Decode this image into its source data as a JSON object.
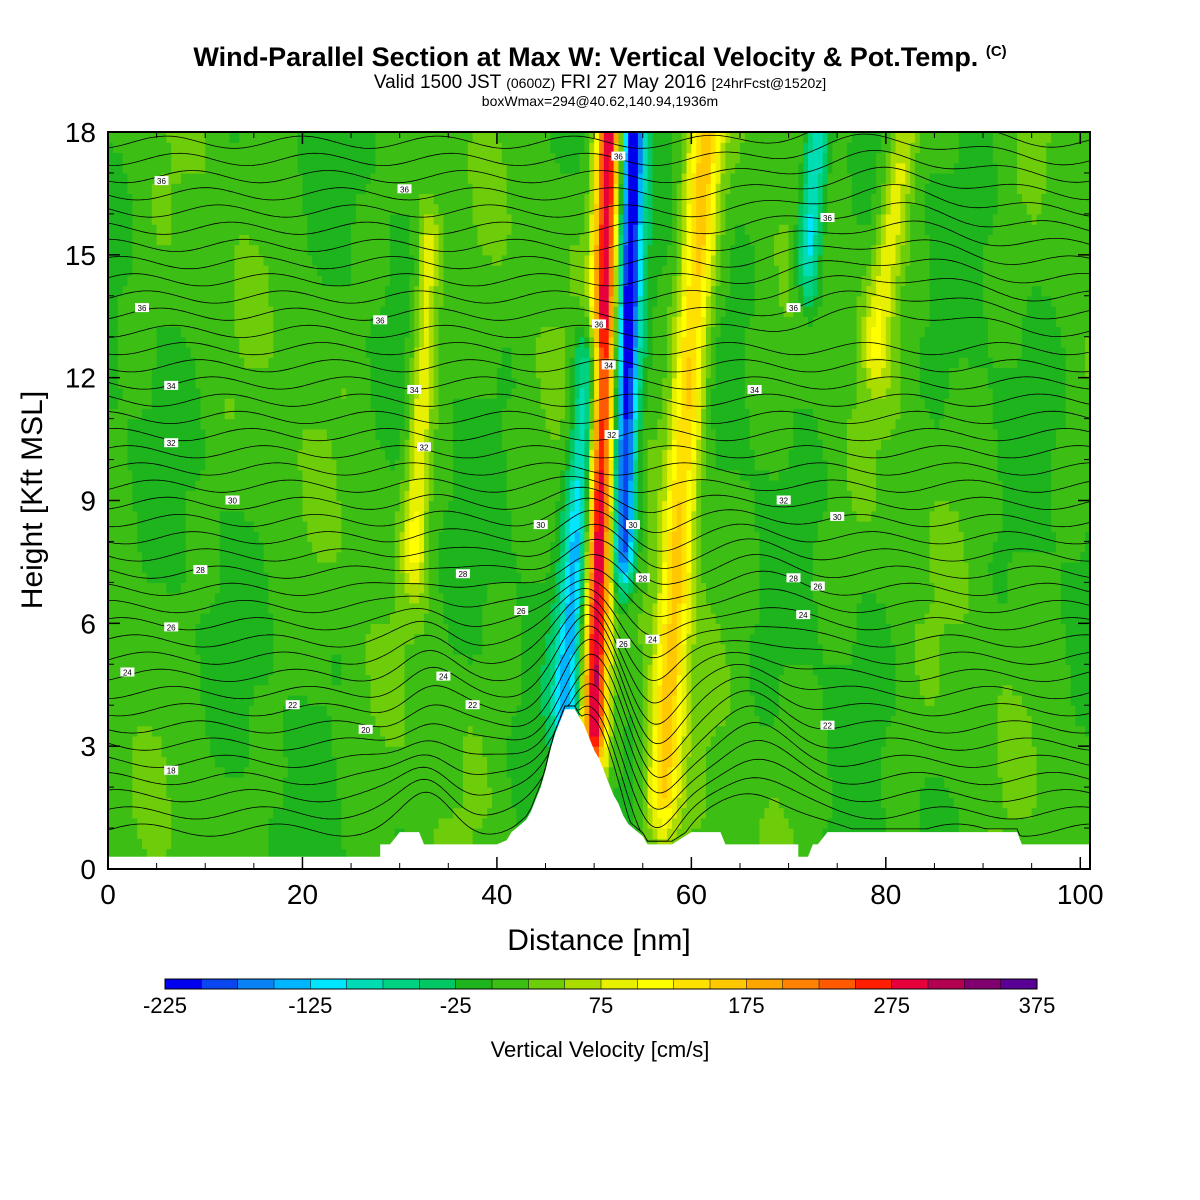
{
  "title": {
    "main": "Wind-Parallel Section at Max W: Vertical Velocity & Pot.Temp.",
    "copyright": "(C)",
    "valid": "Valid 1500 JST",
    "utc": "(0600Z)",
    "date": "FRI 27 May 2016",
    "forecast": "[24hrFcst@1520z]",
    "box_info": "boxWmax=294@40.62,140.94,1936m"
  },
  "colorbar": {
    "label": "Vertical Velocity [cm/s]",
    "tick_labels": [
      "-225",
      "-125",
      "-25",
      "75",
      "175",
      "275",
      "375"
    ],
    "levels": [
      -225,
      -200,
      -175,
      -150,
      -125,
      -100,
      -75,
      -50,
      -25,
      0,
      25,
      50,
      75,
      100,
      125,
      150,
      175,
      200,
      225,
      250,
      275,
      300,
      325,
      350,
      375
    ],
    "colors": [
      "#0000ee",
      "#0a46f0",
      "#0a82f5",
      "#00b4ff",
      "#00e6ff",
      "#00dcb4",
      "#00d282",
      "#00c864",
      "#1eb41e",
      "#3cbe14",
      "#6ecd0a",
      "#aadc00",
      "#e6f000",
      "#ffff00",
      "#ffe100",
      "#ffc800",
      "#ffa500",
      "#ff8200",
      "#ff5a00",
      "#ff1e00",
      "#e6003c",
      "#b40050",
      "#82006e",
      "#5a0096"
    ]
  },
  "chart_data": {
    "type": "heatmap",
    "xlabel": "Distance [nm]",
    "ylabel": "Height [Kft MSL]",
    "xlim": [
      0,
      101
    ],
    "ylim": [
      0,
      18
    ],
    "xticks": [
      "0",
      "20",
      "40",
      "60",
      "80",
      "100"
    ],
    "yticks": [
      "0",
      "3",
      "6",
      "9",
      "12",
      "15",
      "18"
    ],
    "z_units": "cm/s",
    "z_max": 294,
    "terrain": {
      "x": [
        0,
        28,
        28,
        29,
        30,
        31.5,
        32,
        32.5,
        40,
        40,
        41,
        41.5,
        42,
        42.5,
        43,
        43.5,
        44,
        44.5,
        45,
        45.5,
        46,
        46.5,
        47,
        47.5,
        48,
        48.5,
        49,
        49.5,
        50,
        50.5,
        51,
        51.5,
        52,
        52.5,
        53,
        53.5,
        54,
        54.5,
        55,
        55.5,
        56,
        56.5,
        57,
        58,
        60,
        63,
        63.5,
        64,
        71,
        71,
        72,
        72.5,
        73,
        74,
        74,
        77,
        80,
        85,
        90,
        93.5,
        94,
        101
      ],
      "h": [
        0.3,
        0.3,
        0.6,
        0.6,
        0.9,
        0.9,
        0.9,
        0.6,
        0.6,
        0.6,
        0.7,
        0.9,
        1.0,
        1.1,
        1.2,
        1.4,
        1.7,
        2.0,
        2.4,
        2.9,
        3.3,
        3.6,
        3.9,
        3.9,
        3.9,
        3.7,
        3.5,
        3.2,
        2.9,
        2.7,
        2.4,
        2.1,
        1.8,
        1.6,
        1.3,
        1.1,
        1.0,
        0.9,
        0.8,
        0.6,
        0.6,
        0.6,
        0.6,
        0.6,
        0.9,
        0.9,
        0.6,
        0.6,
        0.6,
        0.3,
        0.3,
        0.6,
        0.6,
        0.9,
        0.9,
        0.9,
        0.9,
        0.9,
        0.9,
        0.9,
        0.6,
        0.6
      ],
      "units": "Kft MSL"
    },
    "w_features": [
      {
        "type": "updraft",
        "x_top": 51.5,
        "x_base": 50.0,
        "y_from": 3.5,
        "y_to": 18,
        "peak": 290
      },
      {
        "type": "downdraft",
        "x_top": 54.0,
        "x_base": 53.0,
        "y_from": 8,
        "y_to": 18,
        "peak": -225
      },
      {
        "type": "downdraft",
        "x_top": 49.5,
        "x_base": 47.0,
        "y_from": 4,
        "y_to": 12,
        "peak": -140
      },
      {
        "type": "updraft",
        "x_top": 61.5,
        "x_base": 57.0,
        "y_from": 2,
        "y_to": 18,
        "peak": 150
      },
      {
        "type": "downdraft",
        "x_top": 73.0,
        "x_base": 72.0,
        "y_from": 15,
        "y_to": 18,
        "peak": -130
      },
      {
        "type": "updraft",
        "x_top": 33.0,
        "x_base": 31.5,
        "y_from": 8,
        "y_to": 15,
        "peak": 90
      },
      {
        "type": "updraft",
        "x_top": 82.0,
        "x_base": 79.0,
        "y_from": 13,
        "y_to": 18,
        "peak": 80
      }
    ],
    "theta_labels": [
      {
        "text": "36",
        "x": 5.5,
        "y": 16.8
      },
      {
        "text": "36",
        "x": 30.5,
        "y": 16.6
      },
      {
        "text": "36",
        "x": 52.5,
        "y": 17.4
      },
      {
        "text": "36",
        "x": 74.0,
        "y": 15.9
      },
      {
        "text": "36",
        "x": 3.5,
        "y": 13.7
      },
      {
        "text": "36",
        "x": 28.0,
        "y": 13.4
      },
      {
        "text": "36",
        "x": 50.5,
        "y": 13.3
      },
      {
        "text": "36",
        "x": 70.5,
        "y": 13.7
      },
      {
        "text": "34",
        "x": 6.5,
        "y": 11.8
      },
      {
        "text": "34",
        "x": 31.5,
        "y": 11.7
      },
      {
        "text": "34",
        "x": 51.5,
        "y": 12.3
      },
      {
        "text": "34",
        "x": 66.5,
        "y": 11.7
      },
      {
        "text": "32",
        "x": 6.5,
        "y": 10.4
      },
      {
        "text": "32",
        "x": 32.5,
        "y": 10.3
      },
      {
        "text": "32",
        "x": 51.8,
        "y": 10.6
      },
      {
        "text": "32",
        "x": 69.5,
        "y": 9.0
      },
      {
        "text": "30",
        "x": 12.8,
        "y": 9.0
      },
      {
        "text": "30",
        "x": 44.5,
        "y": 8.4
      },
      {
        "text": "30",
        "x": 54.0,
        "y": 8.4
      },
      {
        "text": "30",
        "x": 75.0,
        "y": 8.6
      },
      {
        "text": "28",
        "x": 9.5,
        "y": 7.3
      },
      {
        "text": "28",
        "x": 36.5,
        "y": 7.2
      },
      {
        "text": "28",
        "x": 55.0,
        "y": 7.1
      },
      {
        "text": "28",
        "x": 70.5,
        "y": 7.1
      },
      {
        "text": "26",
        "x": 6.5,
        "y": 5.9
      },
      {
        "text": "26",
        "x": 42.5,
        "y": 6.3
      },
      {
        "text": "26",
        "x": 53.0,
        "y": 5.5
      },
      {
        "text": "26",
        "x": 73.0,
        "y": 6.9
      },
      {
        "text": "24",
        "x": 2.0,
        "y": 4.8
      },
      {
        "text": "24",
        "x": 34.5,
        "y": 4.7
      },
      {
        "text": "24",
        "x": 56.0,
        "y": 5.6
      },
      {
        "text": "24",
        "x": 71.5,
        "y": 6.2
      },
      {
        "text": "22",
        "x": 19.0,
        "y": 4.0
      },
      {
        "text": "22",
        "x": 37.5,
        "y": 4.0
      },
      {
        "text": "22",
        "x": 74.0,
        "y": 3.5
      },
      {
        "text": "20",
        "x": 26.5,
        "y": 3.4
      },
      {
        "text": "18",
        "x": 6.5,
        "y": 2.4
      }
    ]
  }
}
